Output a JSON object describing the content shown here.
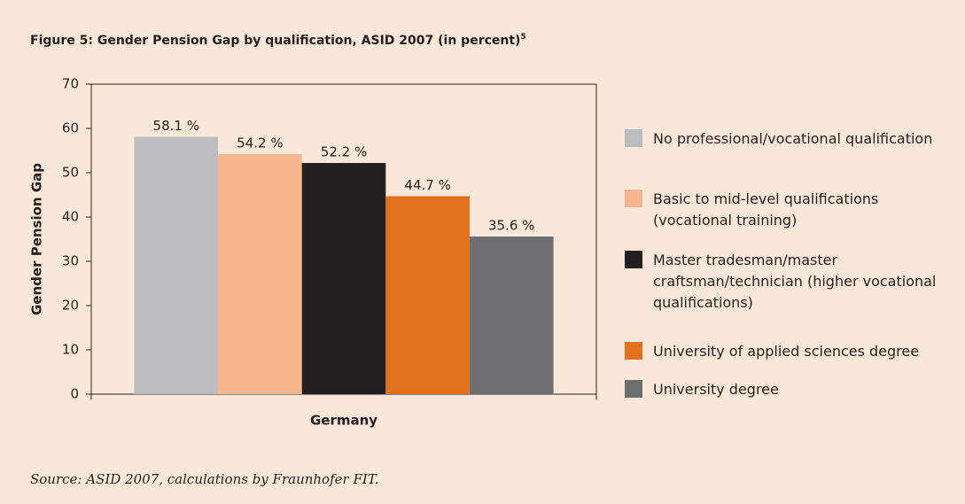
{
  "chart_data": {
    "type": "bar",
    "title": "Figure 5: Gender Pension Gap by qualification, ASID 2007 (in percent)",
    "title_superscript": "5",
    "ylabel": "Gender Pension Gap",
    "xlabel": "Germany",
    "categories": [
      "Germany"
    ],
    "series": [
      {
        "name": "No professional/vocational qualification",
        "color": "#bcbdc1",
        "values": [
          58.1
        ],
        "value_labels": [
          "58.1 %"
        ]
      },
      {
        "name": "Basic to mid-level qualifications (vocational training)",
        "color": "#f4b78e",
        "values": [
          54.2
        ],
        "value_labels": [
          "54.2 %"
        ]
      },
      {
        "name": "Master tradesman/master craftsman/technician (higher vocational qualifications)",
        "color": "#231f20",
        "values": [
          52.2
        ],
        "value_labels": [
          "52.2 %"
        ]
      },
      {
        "name": "University of applied sciences degree",
        "color": "#e2711d",
        "values": [
          44.7
        ],
        "value_labels": [
          "44.7 %"
        ]
      },
      {
        "name": "University degree",
        "color": "#6d6e71",
        "values": [
          35.6
        ],
        "value_labels": [
          "35.6 %"
        ]
      }
    ],
    "ylim": [
      0,
      70
    ],
    "yticks": [
      0,
      10,
      20,
      30,
      40,
      50,
      60,
      70
    ],
    "grid": false,
    "legend": "right",
    "source": "Source: ASID 2007, calculations by Fraunhofer FIT."
  }
}
